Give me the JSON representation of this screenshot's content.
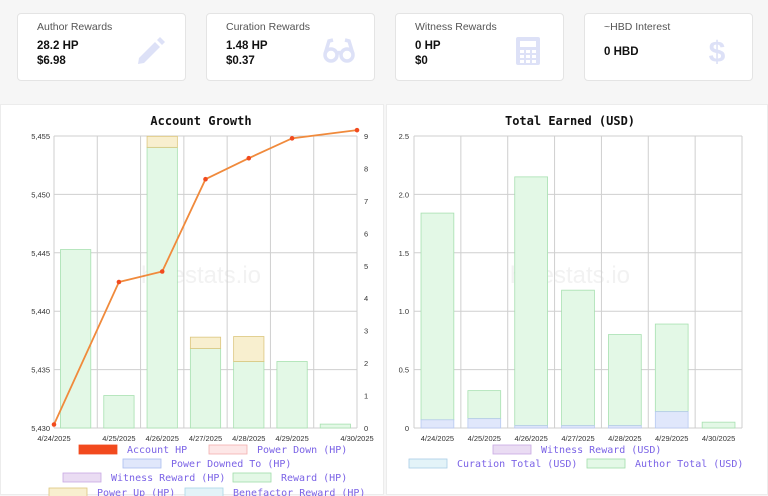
{
  "cards": [
    {
      "title": "Author Rewards",
      "value1": "28.2 HP",
      "value2": "$6.98",
      "icon": "pencil-icon"
    },
    {
      "title": "Curation Rewards",
      "value1": "1.48 HP",
      "value2": "$0.37",
      "icon": "glasses-icon"
    },
    {
      "title": "Witness Rewards",
      "value1": "0 HP",
      "value2": "$0",
      "icon": "calculator-icon"
    },
    {
      "title": "~HBD Interest",
      "value1": "0 HBD",
      "value2": "",
      "icon": "dollar-icon"
    }
  ],
  "colors": {
    "icon": "#dde1f7",
    "line": "#f08a3c",
    "account_hp": "#f24a1e",
    "power_down": "#fde7e7",
    "power_downed_to": "#e0e7fb",
    "witness": "#eadcf3",
    "reward": "#e3f8e6",
    "power_up": "#f8efcf",
    "benefactor": "#e3f3f8",
    "grid": "#cfcfcf",
    "legend_text": "#7b63e6"
  },
  "watermark": "hivestats.io",
  "chart_data": [
    {
      "type": "bar",
      "title": "Account Growth",
      "categories": [
        "4/24/2025",
        "4/25/2025",
        "4/26/2025",
        "4/27/2025",
        "4/28/2025",
        "4/29/2025",
        "4/30/2025"
      ],
      "ylim": [
        5430,
        5455
      ],
      "y_ticks": [
        "5,430",
        "5,435",
        "5,440",
        "5,445",
        "5,450",
        "5,455"
      ],
      "y2lim": [
        0,
        9
      ],
      "y2_ticks": [
        "0",
        "1",
        "2",
        "3",
        "4",
        "5",
        "6",
        "7",
        "8",
        "9"
      ],
      "series": [
        {
          "name": "Account HP",
          "type": "line",
          "axis": "y",
          "values": [
            5430.3,
            5442.5,
            5443.4,
            5451.3,
            5453.1,
            5454.8,
            5455.5
          ]
        },
        {
          "name": "Reward (HP)",
          "type": "bar",
          "axis": "y2",
          "values": [
            5.5,
            1.0,
            8.65,
            2.45,
            2.05,
            2.05,
            0.12
          ]
        },
        {
          "name": "Power Up (HP)",
          "type": "bar",
          "axis": "y2",
          "values": [
            0,
            0,
            0.34,
            0.35,
            0.77,
            0,
            0
          ]
        }
      ],
      "legend": [
        "Account HP",
        "Power Down (HP)",
        "Power Downed To (HP)",
        "Witness Reward (HP)",
        "Reward (HP)",
        "Power Up (HP)",
        "Benefactor Reward (HP)"
      ],
      "grid": true
    },
    {
      "type": "bar",
      "title": "Total Earned (USD)",
      "categories": [
        "4/24/2025",
        "4/25/2025",
        "4/26/2025",
        "4/27/2025",
        "4/28/2025",
        "4/29/2025",
        "4/30/2025"
      ],
      "ylim": [
        0,
        2.5
      ],
      "y_ticks": [
        "0",
        "0.5",
        "1.0",
        "1.5",
        "2.0",
        "2.5"
      ],
      "series": [
        {
          "name": "Curation Total (USD)",
          "values": [
            0.07,
            0.08,
            0.02,
            0.02,
            0.02,
            0.14,
            0.0
          ]
        },
        {
          "name": "Author Total (USD)",
          "values": [
            1.77,
            0.24,
            2.13,
            1.16,
            0.78,
            0.75,
            0.05
          ]
        }
      ],
      "legend": [
        "Witness Reward (USD)",
        "Curation Total (USD)",
        "Author Total (USD)"
      ],
      "grid": true
    }
  ]
}
